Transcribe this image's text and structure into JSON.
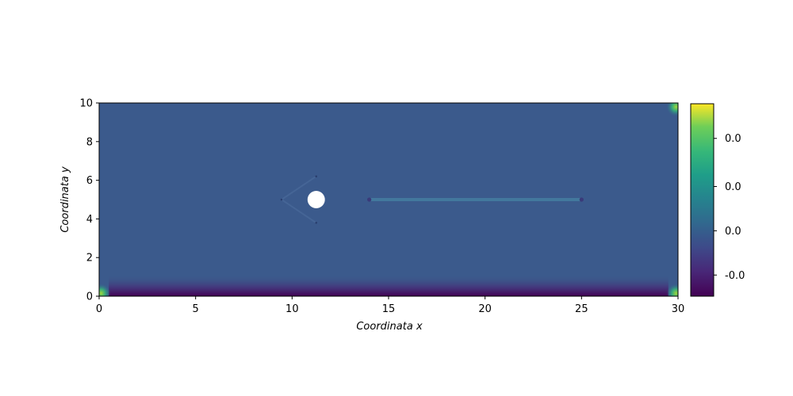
{
  "chart_data": {
    "type": "heatmap",
    "title": "",
    "xlabel": "Coordinata x",
    "ylabel": "Coordinata y",
    "xlim": [
      0,
      30
    ],
    "ylim": [
      0,
      10
    ],
    "xticks": [
      0,
      5,
      10,
      15,
      20,
      25,
      30
    ],
    "yticks": [
      0,
      2,
      4,
      6,
      8,
      10
    ],
    "colormap": "viridis",
    "background_field_color": "#3b5a8c",
    "colorbar": {
      "tick_labels": [
        "0.0",
        "0.0",
        "0.0",
        "-0.0"
      ],
      "tick_fractions": [
        0.82,
        0.57,
        0.34,
        0.11
      ]
    },
    "features": {
      "cylinder": {
        "center": [
          11.25,
          5.0
        ],
        "radius": 0.45,
        "color": "#ffffff"
      },
      "wedge_tip": [
        9.45,
        5.0
      ],
      "wedge_top": [
        11.25,
        6.2
      ],
      "wedge_bottom": [
        11.25,
        3.8
      ],
      "wake_line": {
        "x_start": 14.0,
        "x_end": 25.0,
        "y": 5.0
      },
      "bottom_band": {
        "x_start": 0.5,
        "x_end": 29.5,
        "y_top": 0.7
      },
      "corner_hotspots": [
        [
          0.1,
          0.15
        ],
        [
          29.9,
          0.15
        ],
        [
          29.9,
          9.8
        ]
      ]
    }
  }
}
